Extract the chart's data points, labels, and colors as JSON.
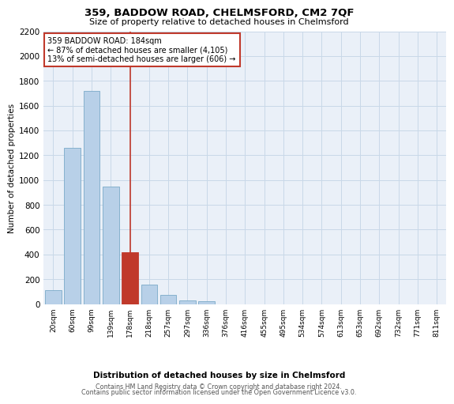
{
  "title": "359, BADDOW ROAD, CHELMSFORD, CM2 7QF",
  "subtitle": "Size of property relative to detached houses in Chelmsford",
  "xlabel_bottom": "Distribution of detached houses by size in Chelmsford",
  "ylabel": "Number of detached properties",
  "categories": [
    "20sqm",
    "60sqm",
    "99sqm",
    "139sqm",
    "178sqm",
    "218sqm",
    "257sqm",
    "297sqm",
    "336sqm",
    "376sqm",
    "416sqm",
    "455sqm",
    "495sqm",
    "534sqm",
    "574sqm",
    "613sqm",
    "653sqm",
    "692sqm",
    "732sqm",
    "771sqm",
    "811sqm"
  ],
  "values": [
    110,
    1260,
    1720,
    950,
    420,
    155,
    75,
    30,
    25,
    0,
    0,
    0,
    0,
    0,
    0,
    0,
    0,
    0,
    0,
    0,
    0
  ],
  "highlight_index": 4,
  "highlight_color": "#c0392b",
  "bar_color": "#b8d0e8",
  "bar_edge_color": "#7aaac8",
  "grid_color": "#c8d8e8",
  "background_color": "#eaf0f8",
  "ylim": [
    0,
    2200
  ],
  "yticks": [
    0,
    200,
    400,
    600,
    800,
    1000,
    1200,
    1400,
    1600,
    1800,
    2000,
    2200
  ],
  "annotation_title": "359 BADDOW ROAD: 184sqm",
  "annotation_line1": "← 87% of detached houses are smaller (4,105)",
  "annotation_line2": "13% of semi-detached houses are larger (606) →",
  "footer1": "Contains HM Land Registry data © Crown copyright and database right 2024.",
  "footer2": "Contains public sector information licensed under the Open Government Licence v3.0."
}
